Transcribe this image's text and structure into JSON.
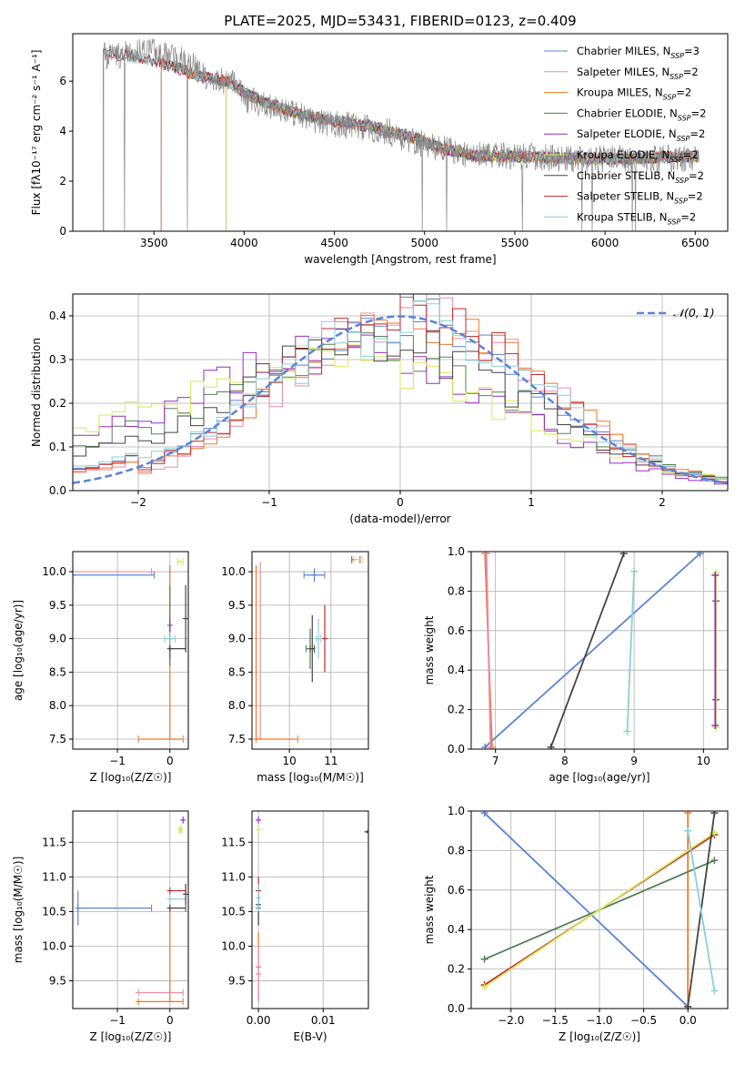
{
  "figure_title": "PLATE=2025, MJD=53431, FIBERID=0123, z=0.409",
  "colors": {
    "chabrier_miles": "#5b84d6",
    "salpeter_miles": "#e88aab",
    "kroupa_miles": "#ee7a2a",
    "chabrier_elodie": "#558055",
    "salpeter_elodie": "#9a2cc4",
    "kroupa_elodie": "#d7ea5c",
    "chabrier_stelib": "#444444",
    "salpeter_stelib": "#c0282b",
    "kroupa_stelib": "#8ccfd6",
    "data_spectrum": "#888888",
    "grid": "#b0b0b0"
  },
  "chart_data": [
    {
      "id": "spectrum",
      "type": "line",
      "title": "PLATE=2025, MJD=53431, FIBERID=0123, z=0.409",
      "xlabel": "wavelength [Angstrom, rest frame]",
      "ylabel": "Flux [fλ10⁻¹⁷ erg cm⁻² s⁻¹ A⁻¹]",
      "xlim": [
        3050,
        6680
      ],
      "ylim": [
        0,
        7.9
      ],
      "xticks": [
        3500,
        4000,
        4500,
        5000,
        5500,
        6000,
        6500
      ],
      "yticks": [
        0,
        2,
        4,
        6
      ],
      "grid": false,
      "legend_position": "top-right",
      "legend": [
        "Chabrier MILES, N_SSP=3",
        "Salpeter MILES, N_SSP=2",
        "Kroupa MILES, N_SSP=2",
        "Chabrier ELODIE, N_SSP=2",
        "Salpeter ELODIE, N_SSP=2",
        "Kroupa ELODIE, N_SSP=2",
        "Chabrier STELIB, N_SSP=2",
        "Salpeter STELIB, N_SSP=2",
        "Kroupa STELIB, N_SSP=2"
      ],
      "data_continuum": [
        [
          3220,
          7.0
        ],
        [
          3500,
          7.2
        ],
        [
          3700,
          6.7
        ],
        [
          3800,
          6.1
        ],
        [
          3950,
          5.9
        ],
        [
          4000,
          5.3
        ],
        [
          4200,
          4.9
        ],
        [
          4400,
          4.4
        ],
        [
          4600,
          4.2
        ],
        [
          4800,
          4.0
        ],
        [
          4860,
          3.7
        ],
        [
          5000,
          3.5
        ],
        [
          5200,
          3.1
        ],
        [
          5400,
          3.0
        ],
        [
          5600,
          3.0
        ],
        [
          5800,
          2.9
        ],
        [
          6000,
          2.9
        ],
        [
          6300,
          2.9
        ],
        [
          6500,
          2.9
        ]
      ],
      "model_continuum": [
        [
          3220,
          7.1
        ],
        [
          3400,
          7.0
        ],
        [
          3600,
          6.6
        ],
        [
          3750,
          6.2
        ],
        [
          3900,
          6.0
        ],
        [
          3990,
          5.6
        ],
        [
          4100,
          5.2
        ],
        [
          4300,
          4.7
        ],
        [
          4500,
          4.4
        ],
        [
          4700,
          4.2
        ],
        [
          4850,
          3.9
        ],
        [
          4950,
          3.7
        ],
        [
          5100,
          3.3
        ],
        [
          5300,
          3.0
        ],
        [
          5500,
          3.0
        ],
        [
          5800,
          2.9
        ],
        [
          6100,
          2.9
        ],
        [
          6500,
          3.0
        ]
      ],
      "model_start_wavelength": {
        "MILES": 3540,
        "ELODIE": 3900,
        "STELIB": 3220
      }
    },
    {
      "id": "residuals",
      "type": "line",
      "xlabel": "(data-model)/error",
      "ylabel": "Normed distribution",
      "xlim": [
        -2.5,
        2.5
      ],
      "ylim": [
        0,
        0.45
      ],
      "xticks": [
        -2,
        -1,
        0,
        1,
        2
      ],
      "yticks": [
        0.0,
        0.1,
        0.2,
        0.3,
        0.4
      ],
      "grid": true,
      "legend_position": "top-right",
      "legend": [
        "𝒩(0, 1)"
      ],
      "reference_curve": "normal(0, 1)",
      "histogram_bin_width": 0.1,
      "series_shapes": [
        {
          "key": "chabrier_miles",
          "mean": 0.0,
          "sigma": 1.0
        },
        {
          "key": "salpeter_miles",
          "mean": 0.1,
          "sigma": 0.95
        },
        {
          "key": "kroupa_miles",
          "mean": 0.1,
          "sigma": 1.0
        },
        {
          "key": "chabrier_elodie",
          "mean": -0.3,
          "sigma": 1.25
        },
        {
          "key": "salpeter_elodie",
          "mean": -0.45,
          "sigma": 1.2
        },
        {
          "key": "kroupa_elodie",
          "mean": -0.5,
          "sigma": 1.35
        },
        {
          "key": "chabrier_stelib",
          "mean": -0.2,
          "sigma": 1.15
        },
        {
          "key": "salpeter_stelib",
          "mean": 0.05,
          "sigma": 1.0
        },
        {
          "key": "kroupa_stelib",
          "mean": 0.0,
          "sigma": 1.05
        }
      ]
    },
    {
      "id": "age_vs_z",
      "type": "scatter",
      "xlabel": "Z [log₁₀(Z/Z☉)]",
      "ylabel": "age  [log₁₀(age/yr)]",
      "xlim": [
        -1.85,
        0.35
      ],
      "ylim": [
        7.35,
        10.3
      ],
      "xticks": [
        -1,
        0
      ],
      "yticks": [
        7.5,
        8.0,
        8.5,
        9.0,
        9.5,
        10.0
      ],
      "grid": true,
      "points": [
        {
          "key": "chabrier_miles",
          "x": -1.85,
          "y": 9.95,
          "xerr": [
            0,
            1.55
          ],
          "yerr": 0.15
        },
        {
          "key": "salpeter_miles",
          "x": -0.35,
          "y": 10.0,
          "xerr": [
            1.5,
            0.0
          ],
          "yerr": 0.0
        },
        {
          "key": "kroupa_miles",
          "x": 0.0,
          "y": 7.5,
          "xerr": [
            0.6,
            0.25
          ],
          "yerr": [
            0.0,
            2.6
          ]
        },
        {
          "key": "chabrier_elodie",
          "x": 0.0,
          "y": 9.2,
          "xerr": 0.0,
          "yerr": 0.6
        },
        {
          "key": "salpeter_elodie",
          "x": 0.0,
          "y": 9.0,
          "xerr": 0.0,
          "yerr": 0.3
        },
        {
          "key": "kroupa_elodie",
          "x": 0.2,
          "y": 10.15,
          "xerr": 0.05,
          "yerr": 0.02
        },
        {
          "key": "chabrier_stelib",
          "x": 0.0,
          "y": 8.85,
          "xerr": [
            0,
            0.3
          ],
          "yerr": 0.0
        },
        {
          "key": "chabrier_stelib",
          "x": 0.3,
          "y": 9.3,
          "xerr": 0.0,
          "yerr": 0.5
        },
        {
          "key": "kroupa_stelib",
          "x": 0.0,
          "y": 9.0,
          "xerr": 0.1,
          "yerr": 0.1
        }
      ]
    },
    {
      "id": "age_vs_mass",
      "type": "scatter",
      "xlabel": "mass [log₁₀(M/M☉)]",
      "ylabel": "",
      "xlim": [
        9.1,
        11.9
      ],
      "ylim": [
        7.35,
        10.3
      ],
      "xticks": [
        10,
        11
      ],
      "yticks": [
        7.5,
        8.0,
        8.5,
        9.0,
        9.5,
        10.0
      ],
      "grid": true,
      "points": [
        {
          "key": "chabrier_miles",
          "x": 10.6,
          "y": 9.95,
          "xerr": 0.25,
          "yerr": 0.1
        },
        {
          "key": "salpeter_miles",
          "x": 9.3,
          "y": 7.5,
          "xerr": 0.0,
          "yerr": [
            0.0,
            2.65
          ]
        },
        {
          "key": "kroupa_miles",
          "x": 9.2,
          "y": 7.5,
          "xerr": [
            0.0,
            1.0
          ],
          "yerr": [
            0.0,
            2.6
          ]
        },
        {
          "key": "chabrier_elodie",
          "x": 10.5,
          "y": 8.85,
          "xerr": 0.1,
          "yerr": 0.3
        },
        {
          "key": "salpeter_elodie",
          "x": 11.6,
          "y": 10.18,
          "xerr": 0.1,
          "yerr": 0.0
        },
        {
          "key": "kroupa_elodie",
          "x": 11.65,
          "y": 10.18,
          "xerr": 0.1,
          "yerr": 0.0
        },
        {
          "key": "chabrier_stelib",
          "x": 10.55,
          "y": 8.85,
          "xerr": 0.05,
          "yerr": 0.5
        },
        {
          "key": "salpeter_stelib",
          "x": 10.85,
          "y": 9.0,
          "xerr": 0.0,
          "yerr": 0.5
        },
        {
          "key": "kroupa_stelib",
          "x": 10.7,
          "y": 9.0,
          "xerr": 0.05,
          "yerr": 0.3
        }
      ]
    },
    {
      "id": "mass_weight_vs_age",
      "type": "line",
      "xlabel": "age  [log₁₀(age/yr)]",
      "ylabel": "mass weight",
      "xlim": [
        6.65,
        10.35
      ],
      "ylim": [
        0,
        1.0
      ],
      "xticks": [
        7,
        8,
        9,
        10
      ],
      "yticks": [
        0.0,
        0.2,
        0.4,
        0.6,
        0.8,
        1.0
      ],
      "grid": true,
      "series": [
        {
          "key": "chabrier_miles",
          "x": [
            6.85,
            9.95
          ],
          "y": [
            0.01,
            0.99
          ]
        },
        {
          "key": "kroupa_miles",
          "x": [
            6.85,
            6.95
          ],
          "y": [
            0.99,
            0.01
          ]
        },
        {
          "key": "salpeter_miles",
          "x": [
            6.87,
            6.93
          ],
          "y": [
            0.99,
            0.01
          ]
        },
        {
          "key": "chabrier_stelib",
          "x": [
            7.8,
            8.85
          ],
          "y": [
            0.01,
            0.99
          ]
        },
        {
          "key": "kroupa_stelib",
          "x": [
            8.9,
            9.0
          ],
          "y": [
            0.09,
            0.9
          ]
        },
        {
          "key": "chabrier_elodie",
          "x": [
            10.18,
            10.18
          ],
          "y": [
            0.25,
            0.75
          ]
        },
        {
          "key": "kroupa_elodie",
          "x": [
            10.18,
            10.18
          ],
          "y": [
            0.11,
            0.89
          ]
        },
        {
          "key": "salpeter_elodie",
          "x": [
            10.17,
            10.17
          ],
          "y": [
            0.12,
            0.88
          ]
        }
      ]
    },
    {
      "id": "mass_vs_z",
      "type": "scatter",
      "xlabel": "Z [log₁₀(Z/Z☉)]",
      "ylabel": "mass [log₁₀(M/M☉)]",
      "xlim": [
        -1.85,
        0.35
      ],
      "ylim": [
        9.1,
        11.95
      ],
      "xticks": [
        -1,
        0
      ],
      "yticks": [
        9.5,
        10.0,
        10.5,
        11.0,
        11.5
      ],
      "grid": true,
      "points": [
        {
          "key": "chabrier_miles",
          "x": -1.75,
          "y": 10.55,
          "xerr": [
            0,
            1.4
          ],
          "yerr": 0.25
        },
        {
          "key": "salpeter_miles",
          "x": -0.6,
          "y": 9.33,
          "xerr": [
            0,
            0.85
          ],
          "yerr": 0.0
        },
        {
          "key": "kroupa_miles",
          "x": -0.6,
          "y": 9.2,
          "xerr": [
            0,
            0.85
          ],
          "yerr": 0.0
        },
        {
          "key": "kroupa_miles",
          "x": 0.0,
          "y": 9.2,
          "xerr": 0.0,
          "yerr": [
            0,
            1.4
          ]
        },
        {
          "key": "salpeter_elodie",
          "x": 0.25,
          "y": 11.82,
          "xerr": 0.0,
          "yerr": 0.05
        },
        {
          "key": "kroupa_elodie",
          "x": 0.2,
          "y": 11.68,
          "xerr": 0.02,
          "yerr": 0.05
        },
        {
          "key": "chabrier_stelib",
          "x": 0.0,
          "y": 10.55,
          "xerr": [
            0,
            0.3
          ],
          "yerr": 0.0
        },
        {
          "key": "salpeter_stelib",
          "x": 0.0,
          "y": 10.8,
          "xerr": [
            0,
            0.3
          ],
          "yerr": 0.0
        },
        {
          "key": "kroupa_stelib",
          "x": 0.0,
          "y": 10.68,
          "xerr": [
            0,
            0.3
          ],
          "yerr": 0.0
        },
        {
          "key": "chabrier_stelib",
          "x": 0.3,
          "y": 10.75,
          "xerr": 0.0,
          "yerr": 0.15
        }
      ]
    },
    {
      "id": "mass_vs_ebv",
      "type": "scatter",
      "xlabel": "E(B-V)",
      "ylabel": "",
      "xlim": [
        -0.001,
        0.017
      ],
      "ylim": [
        9.1,
        11.95
      ],
      "xticks": [
        0.0,
        0.01
      ],
      "xticklabels": [
        "0.00",
        "0.01"
      ],
      "yticks": [
        9.5,
        10.0,
        10.5,
        11.0,
        11.5
      ],
      "grid": true,
      "points": [
        {
          "key": "kroupa_miles",
          "x": 0.0,
          "y": 9.7,
          "xerr": 0.0,
          "yerr": 0.5
        },
        {
          "key": "salpeter_miles",
          "x": 0.0,
          "y": 9.6,
          "xerr": 0.0,
          "yerr": 0.4
        },
        {
          "key": "chabrier_miles",
          "x": 0.0,
          "y": 10.55,
          "xerr": 0.0,
          "yerr": 0.25
        },
        {
          "key": "chabrier_stelib",
          "x": 0.0,
          "y": 10.6,
          "xerr": 0.0,
          "yerr": 0.3
        },
        {
          "key": "salpeter_stelib",
          "x": 0.0,
          "y": 10.8,
          "xerr": 0.0,
          "yerr": 0.2
        },
        {
          "key": "kroupa_stelib",
          "x": 0.0,
          "y": 10.7,
          "xerr": 0.0,
          "yerr": 0.2
        },
        {
          "key": "salpeter_elodie",
          "x": 0.0,
          "y": 11.82,
          "xerr": 0.0,
          "yerr": 0.05
        },
        {
          "key": "kroupa_elodie",
          "x": 0.0,
          "y": 11.68,
          "xerr": 0.0,
          "yerr": 0.05
        },
        {
          "key": "chabrier_stelib",
          "x": 0.0168,
          "y": 11.65,
          "xerr": 0.0,
          "yerr": 0.02
        }
      ]
    },
    {
      "id": "mass_weight_vs_z",
      "type": "line",
      "xlabel": "Z [log₁₀(Z/Z☉)]",
      "ylabel": "mass weight",
      "xlim": [
        -2.45,
        0.45
      ],
      "ylim": [
        0,
        1.0
      ],
      "xticks": [
        -2.0,
        -1.5,
        -1.0,
        -0.5,
        0.0
      ],
      "xticklabels": [
        "−2.0",
        "−1.5",
        "−1.0",
        "−0.5",
        "0.0"
      ],
      "yticks": [
        0.0,
        0.2,
        0.4,
        0.6,
        0.8,
        1.0
      ],
      "grid": true,
      "series": [
        {
          "key": "chabrier_miles",
          "x": [
            -2.3,
            0.0
          ],
          "y": [
            0.99,
            0.01
          ]
        },
        {
          "key": "kroupa_miles",
          "x": [
            0.0,
            0.0
          ],
          "y": [
            0.01,
            0.99
          ]
        },
        {
          "key": "chabrier_elodie",
          "x": [
            -2.3,
            0.3
          ],
          "y": [
            0.25,
            0.75
          ]
        },
        {
          "key": "salpeter_stelib",
          "x": [
            -2.3,
            0.3
          ],
          "y": [
            0.12,
            0.88
          ]
        },
        {
          "key": "kroupa_elodie",
          "x": [
            -2.3,
            0.3
          ],
          "y": [
            0.11,
            0.89
          ]
        },
        {
          "key": "chabrier_stelib",
          "x": [
            0.0,
            0.3
          ],
          "y": [
            0.01,
            0.99
          ]
        },
        {
          "key": "kroupa_stelib",
          "x": [
            0.0,
            0.3
          ],
          "y": [
            0.9,
            0.09
          ]
        }
      ]
    }
  ]
}
